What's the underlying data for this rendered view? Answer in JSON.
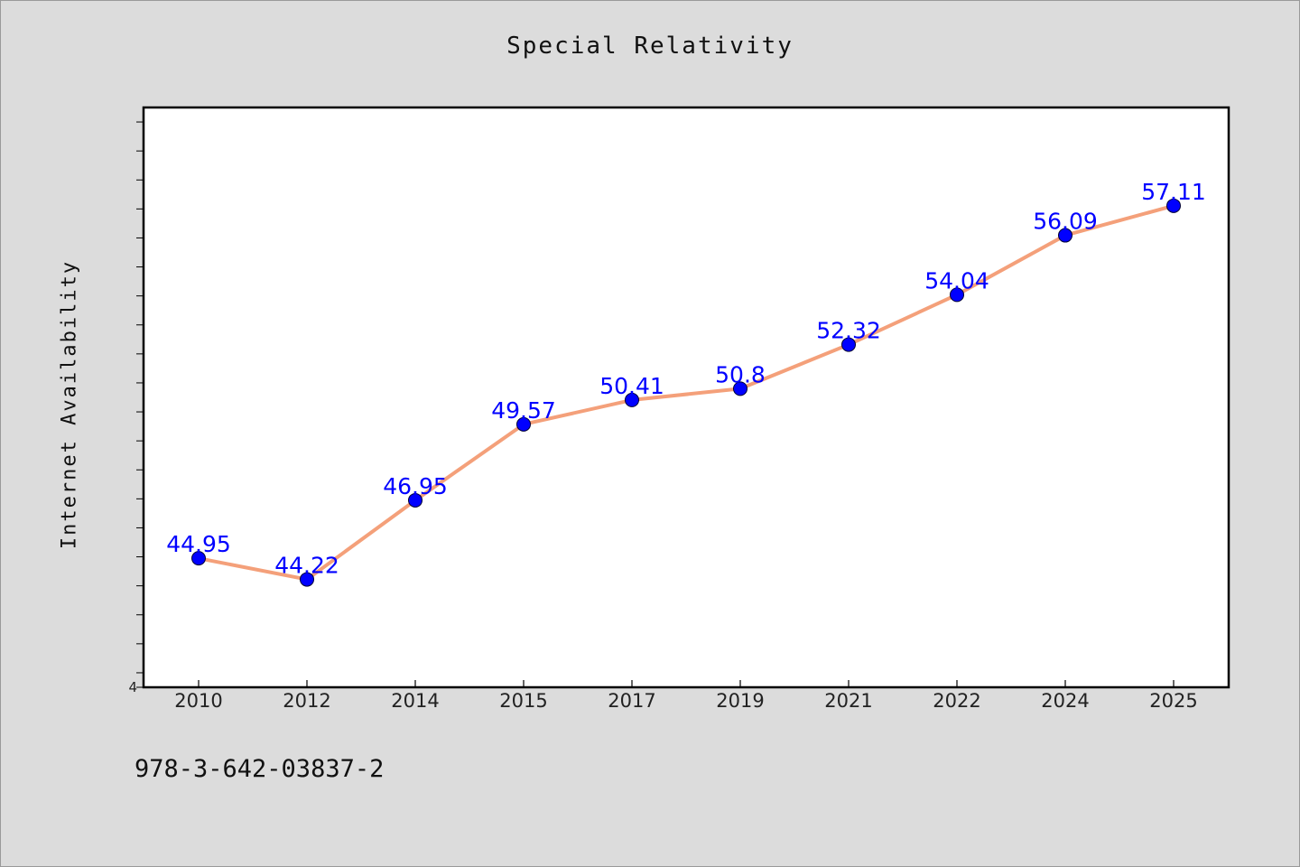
{
  "title": "Special Relativity",
  "footer_code": "978-3-642-03837-2",
  "chart_data": {
    "type": "line",
    "title": "Special Relativity",
    "xlabel": "",
    "ylabel": "Internet Availability",
    "categories": [
      "2010",
      "2012",
      "2014",
      "2015",
      "2017",
      "2019",
      "2021",
      "2022",
      "2024",
      "2025"
    ],
    "series": [
      {
        "values": [
          44.95,
          44.22,
          46.95,
          49.57,
          50.41,
          50.8,
          52.32,
          54.04,
          56.09,
          57.11
        ],
        "line_color": "#f4a07a",
        "marker_color": "#0000ff"
      }
    ],
    "data_labels": [
      "44.95",
      "44.22",
      "46.95",
      "49.57",
      "50.41",
      "50.8",
      "52.32",
      "54.04",
      "56.09",
      "57.11"
    ],
    "ylim": [
      40.5,
      60.5
    ],
    "y_tick_label_shown": "4",
    "grid": false,
    "legend": "none"
  }
}
